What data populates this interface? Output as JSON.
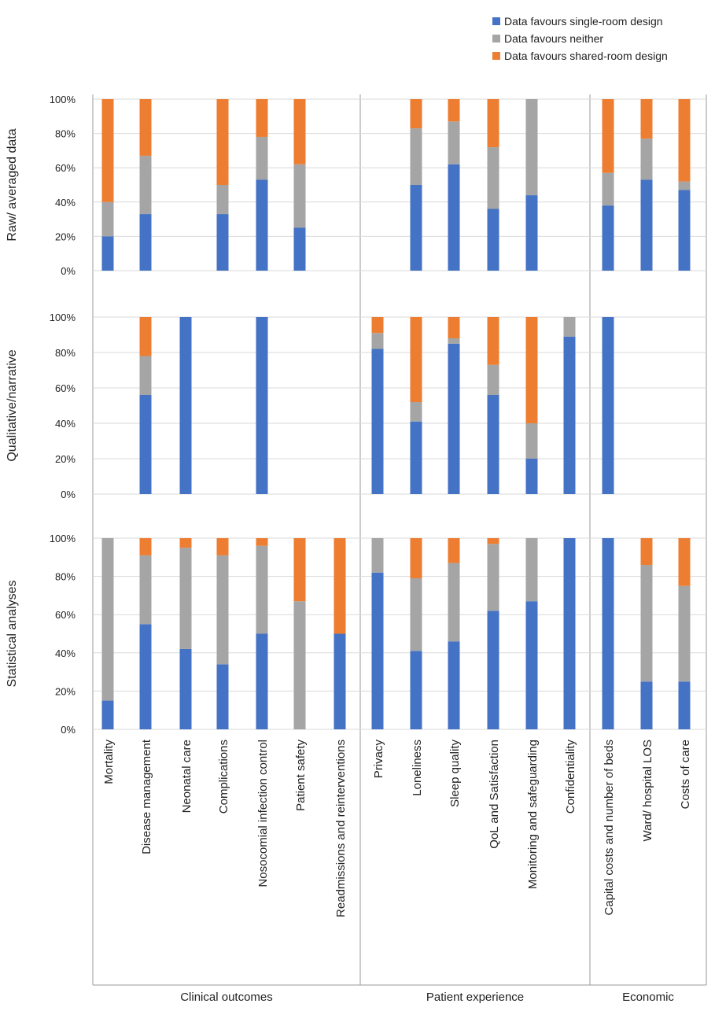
{
  "chart_data": {
    "type": "bar",
    "stacked": true,
    "percent": true,
    "grid": true,
    "legend_position": "top-right",
    "ylim": [
      0,
      100
    ],
    "y_ticks": [
      "0%",
      "20%",
      "40%",
      "60%",
      "80%",
      "100%"
    ],
    "series_colors": [
      "#4472C4",
      "#A5A5A5",
      "#ED7D31"
    ],
    "legend": [
      "Data favours single-room design",
      "Data favours neither",
      "Data favours shared-room design"
    ],
    "categories": [
      "Mortality",
      "Disease management",
      "Neonatal care",
      "Complications",
      "Nosocomial infection control",
      "Patient safety",
      "Readmissions and reinterventions",
      "Privacy",
      "Loneliness",
      "Sleep quality",
      "QoL and Satisfaction",
      "Monitoring and safeguarding",
      "Confidentiality",
      "Capital costs and number of beds",
      "Ward/ hospital LOS",
      "Costs of care"
    ],
    "groups": [
      {
        "label": "Clinical outcomes",
        "count": 7
      },
      {
        "label": "Patient experience",
        "count": 6
      },
      {
        "label": "Economic",
        "count": 3
      }
    ],
    "panels": [
      {
        "ylabel": "Raw/ averaged data",
        "single": [
          20,
          33,
          null,
          33,
          53,
          25,
          null,
          null,
          50,
          62,
          36,
          44,
          null,
          38,
          53,
          47
        ],
        "neither": [
          20,
          34,
          null,
          17,
          25,
          37,
          null,
          null,
          33,
          25,
          36,
          56,
          null,
          19,
          24,
          5
        ],
        "shared": [
          60,
          33,
          null,
          50,
          22,
          38,
          null,
          null,
          17,
          13,
          28,
          0,
          null,
          43,
          23,
          48
        ]
      },
      {
        "ylabel": "Qualitative/narrative",
        "single": [
          null,
          56,
          100,
          null,
          100,
          null,
          null,
          82,
          41,
          85,
          56,
          20,
          89,
          100,
          null,
          null
        ],
        "neither": [
          null,
          22,
          0,
          null,
          0,
          null,
          null,
          9,
          11,
          3,
          17,
          20,
          11,
          0,
          null,
          null
        ],
        "shared": [
          null,
          22,
          0,
          null,
          0,
          null,
          null,
          9,
          48,
          12,
          27,
          60,
          0,
          0,
          null,
          null
        ]
      },
      {
        "ylabel": "Statistical analyses",
        "single": [
          15,
          55,
          42,
          34,
          50,
          0,
          50,
          82,
          41,
          46,
          62,
          67,
          100,
          100,
          25,
          25
        ],
        "neither": [
          85,
          36,
          53,
          57,
          46,
          67,
          0,
          18,
          38,
          41,
          35,
          33,
          0,
          0,
          61,
          50
        ],
        "shared": [
          0,
          9,
          5,
          9,
          4,
          33,
          50,
          0,
          21,
          13,
          3,
          0,
          0,
          0,
          14,
          25
        ]
      }
    ]
  }
}
